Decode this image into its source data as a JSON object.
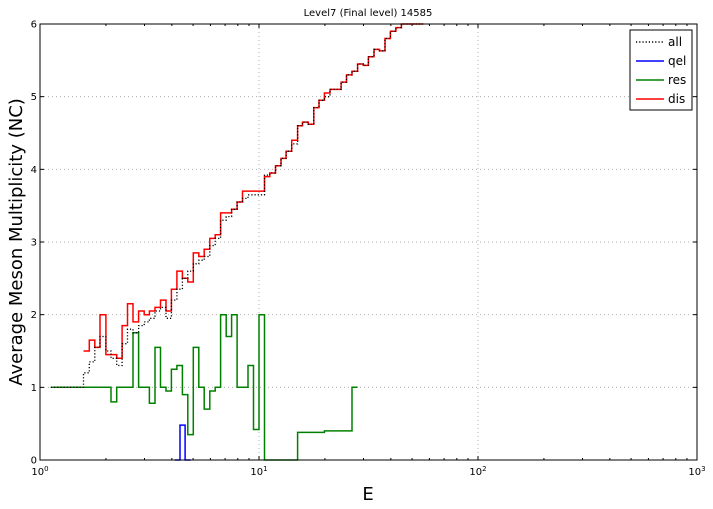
{
  "chart_data": {
    "type": "line",
    "title": "Level7 (Final level) 14585",
    "xlabel": "E",
    "ylabel": "Average Meson Multiplicity (NC)",
    "xscale": "log",
    "xlim": [
      1,
      1000
    ],
    "ylim": [
      0,
      6
    ],
    "x_tick_values": [
      1,
      10,
      100,
      1000
    ],
    "x_tick_labels": [
      {
        "base": "10",
        "exp": "0"
      },
      {
        "base": "10",
        "exp": "1"
      },
      {
        "base": "10",
        "exp": "2"
      },
      {
        "base": "10",
        "exp": "3"
      }
    ],
    "y_ticks": [
      0,
      1,
      2,
      3,
      4,
      5,
      6
    ],
    "y_tick_labels": [
      "0",
      "1",
      "2",
      "3",
      "4",
      "5",
      "6"
    ],
    "grid": true,
    "legend_position": "top-right",
    "series": [
      {
        "name": "all",
        "color": "#000000",
        "style": "dotted",
        "x": [
          1.12,
          1.58,
          1.68,
          1.78,
          1.88,
          2.0,
          2.11,
          2.24,
          2.37,
          2.51,
          2.66,
          2.82,
          2.99,
          3.16,
          3.35,
          3.55,
          3.76,
          3.98,
          4.22,
          4.47,
          4.73,
          5.01,
          5.31,
          5.62,
          5.96,
          6.31,
          6.68,
          7.08,
          7.5,
          7.94,
          8.41,
          8.91,
          9.44,
          10.0,
          10.6,
          11.2,
          11.9,
          12.6,
          13.3,
          14.1,
          15.0,
          15.8,
          16.8,
          17.8,
          18.8,
          19.9,
          21.1,
          22.4,
          23.7,
          25.1,
          26.6,
          28.2,
          29.9,
          31.6,
          33.5,
          35.5,
          37.6,
          39.8,
          42.2,
          44.7,
          47.3,
          50.1,
          53.1
        ],
        "y": [
          1.0,
          1.2,
          1.35,
          1.55,
          1.7,
          1.5,
          1.4,
          1.3,
          1.6,
          1.8,
          1.75,
          1.85,
          1.9,
          1.95,
          2.05,
          2.1,
          1.95,
          2.2,
          2.35,
          2.5,
          2.6,
          2.7,
          2.75,
          2.8,
          2.95,
          3.05,
          3.3,
          3.35,
          3.45,
          3.55,
          3.6,
          3.65,
          3.65,
          3.65,
          3.92,
          3.95,
          4.05,
          4.15,
          4.25,
          4.35,
          4.6,
          4.65,
          4.62,
          4.85,
          4.95,
          5.0,
          5.1,
          5.1,
          5.2,
          5.3,
          5.35,
          5.45,
          5.43,
          5.55,
          5.65,
          5.63,
          5.8,
          5.9,
          5.95,
          6.0,
          6.0,
          6.0,
          6.05
        ]
      },
      {
        "name": "qel",
        "color": "#0000ff",
        "style": "solid",
        "x": [
          4.13,
          4.36,
          4.6
        ],
        "y": [
          0.0,
          0.48,
          0.0
        ]
      },
      {
        "name": "res",
        "color": "#008000",
        "style": "solid",
        "x": [
          1.12,
          1.78,
          2.11,
          2.24,
          2.37,
          2.51,
          2.66,
          2.82,
          2.99,
          3.16,
          3.35,
          3.55,
          3.76,
          3.98,
          4.22,
          4.47,
          4.73,
          5.01,
          5.31,
          5.62,
          5.96,
          6.31,
          6.68,
          7.08,
          7.5,
          7.94,
          8.41,
          8.91,
          9.44,
          10.0,
          10.6,
          11.2,
          15.0,
          19.9,
          26.6
        ],
        "y": [
          1.0,
          1.0,
          0.8,
          1.0,
          1.0,
          1.0,
          1.75,
          1.0,
          1.0,
          0.78,
          1.55,
          1.0,
          0.95,
          1.25,
          1.3,
          0.9,
          0.35,
          1.55,
          1.0,
          0.7,
          0.95,
          1.0,
          2.0,
          1.7,
          2.0,
          1.0,
          1.0,
          1.3,
          0.42,
          2.0,
          0.0,
          0.0,
          0.38,
          0.4,
          1.0
        ]
      },
      {
        "name": "dis",
        "color": "#ff0000",
        "style": "solid",
        "x": [
          1.58,
          1.68,
          1.78,
          1.88,
          2.0,
          2.11,
          2.24,
          2.37,
          2.51,
          2.66,
          2.82,
          2.99,
          3.16,
          3.35,
          3.55,
          3.76,
          3.98,
          4.22,
          4.47,
          4.73,
          5.01,
          5.31,
          5.62,
          5.96,
          6.31,
          6.68,
          7.08,
          7.5,
          7.94,
          8.41,
          8.91,
          9.44,
          10.0,
          10.6,
          11.2,
          11.9,
          12.6,
          13.3,
          14.1,
          15.0,
          15.8,
          16.8,
          17.8,
          18.8,
          19.9,
          21.1,
          22.4,
          23.7,
          25.1,
          26.6,
          28.2,
          29.9,
          31.6,
          33.5,
          35.5,
          37.6,
          39.8,
          42.2,
          44.7,
          47.3,
          50.1,
          53.1
        ],
        "y": [
          1.5,
          1.65,
          1.55,
          2.0,
          1.45,
          1.45,
          1.4,
          1.85,
          2.15,
          1.9,
          2.05,
          2.0,
          2.05,
          2.1,
          2.2,
          2.05,
          2.35,
          2.6,
          2.5,
          2.45,
          2.85,
          2.8,
          2.9,
          3.05,
          3.1,
          3.4,
          3.4,
          3.45,
          3.55,
          3.7,
          3.7,
          3.7,
          3.7,
          3.9,
          3.95,
          4.05,
          4.15,
          4.25,
          4.4,
          4.6,
          4.65,
          4.62,
          4.85,
          4.95,
          5.05,
          5.1,
          5.1,
          5.2,
          5.3,
          5.35,
          5.45,
          5.43,
          5.55,
          5.65,
          5.63,
          5.8,
          5.9,
          5.95,
          6.0,
          6.0,
          6.0,
          6.05
        ]
      }
    ]
  }
}
